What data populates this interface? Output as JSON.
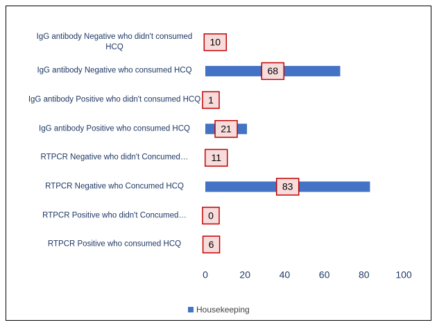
{
  "chart_data": {
    "type": "bar",
    "orientation": "horizontal",
    "categories": [
      "IgG antibody Negative who didn't consumed HCQ",
      "IgG antibody Negative who consumed HCQ",
      "IgG antibody Positive who didn't consumed HCQ",
      "IgG antibody Positive who consumed HCQ",
      "RTPCR Negative who didn't Concumed…",
      "RTPCR Negative who Concumed HCQ",
      "RTPCR Positive who didn't Concumed…",
      "RTPCR Positive who consumed HCQ"
    ],
    "series": [
      {
        "name": "Housekeeping",
        "color": "#4472c4",
        "values": [
          10,
          68,
          1,
          21,
          11,
          83,
          0,
          6
        ]
      }
    ],
    "xlim": [
      0,
      100
    ],
    "xticks": [
      0,
      20,
      40,
      60,
      80,
      100
    ],
    "grid": false,
    "legend": "bottom"
  }
}
